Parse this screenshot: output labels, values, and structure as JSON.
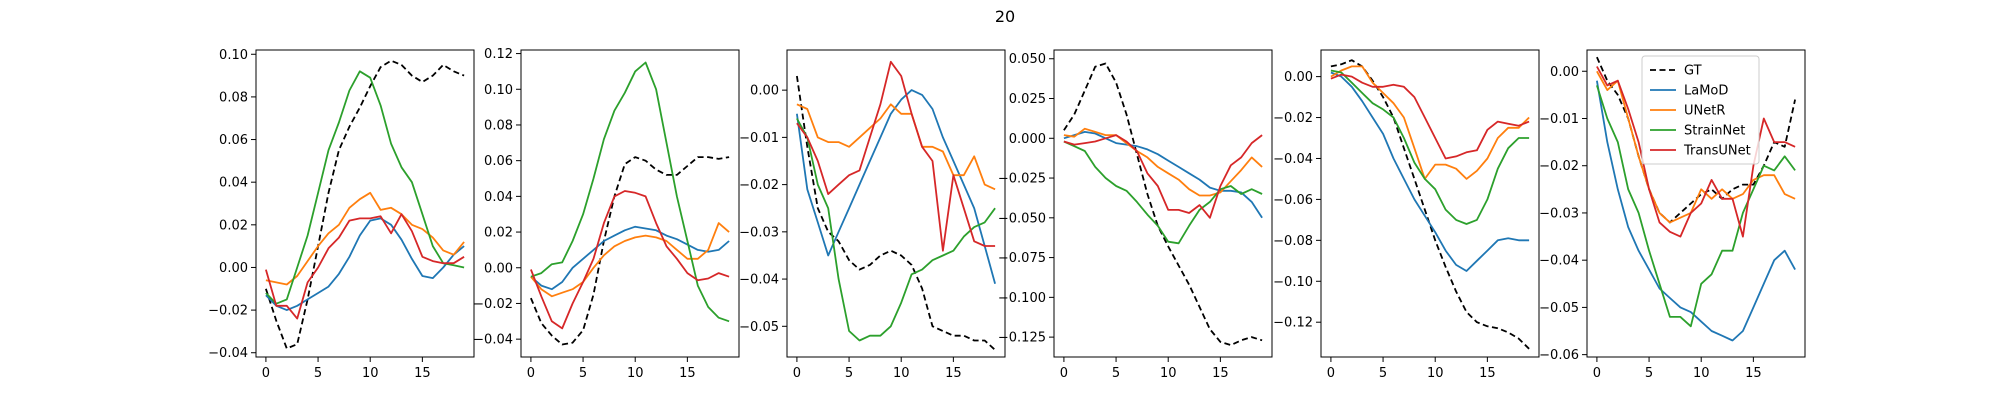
{
  "figure": {
    "title": "20"
  },
  "legend": {
    "location": "upper-left of panel 6",
    "entries": [
      "GT",
      "LaMoD",
      "UNetR",
      "StrainNet",
      "TransUNet"
    ]
  },
  "series_styles": [
    {
      "name": "GT",
      "color": "#000000",
      "dash": true
    },
    {
      "name": "LaMoD",
      "color": "#1f77b4",
      "dash": false
    },
    {
      "name": "UNetR",
      "color": "#ff7f0e",
      "dash": false
    },
    {
      "name": "StrainNet",
      "color": "#2ca02c",
      "dash": false
    },
    {
      "name": "TransUNet",
      "color": "#d62728",
      "dash": false
    }
  ],
  "chart_data": [
    {
      "type": "line",
      "x": [
        0,
        1,
        2,
        3,
        4,
        5,
        6,
        7,
        8,
        9,
        10,
        11,
        12,
        13,
        14,
        15,
        16,
        17,
        18,
        19
      ],
      "xticks": [
        0,
        5,
        10,
        15
      ],
      "xlim": [
        -0.95,
        19.95
      ],
      "ylim": [
        -0.042,
        0.102
      ],
      "yticks": [
        -0.04,
        -0.02,
        0.0,
        0.02,
        0.04,
        0.06,
        0.08,
        0.1
      ],
      "ytick_labels": [
        "−0.04",
        "−0.02",
        "0.00",
        "0.02",
        "0.04",
        "0.06",
        "0.08",
        "0.10"
      ],
      "series": [
        {
          "name": "GT",
          "values": [
            -0.01,
            -0.025,
            -0.038,
            -0.036,
            -0.015,
            0.01,
            0.035,
            0.055,
            0.066,
            0.075,
            0.085,
            0.094,
            0.097,
            0.095,
            0.09,
            0.087,
            0.09,
            0.095,
            0.092,
            0.09
          ]
        },
        {
          "name": "LaMoD",
          "values": [
            -0.013,
            -0.018,
            -0.02,
            -0.018,
            -0.015,
            -0.012,
            -0.009,
            -0.003,
            0.005,
            0.015,
            0.022,
            0.023,
            0.02,
            0.013,
            0.004,
            -0.004,
            -0.005,
            0.0,
            0.006,
            0.01
          ]
        },
        {
          "name": "UNetR",
          "values": [
            -0.006,
            -0.007,
            -0.008,
            -0.004,
            0.003,
            0.01,
            0.016,
            0.02,
            0.028,
            0.032,
            0.035,
            0.027,
            0.028,
            0.025,
            0.02,
            0.018,
            0.014,
            0.008,
            0.006,
            0.012
          ]
        },
        {
          "name": "StrainNet",
          "values": [
            -0.012,
            -0.017,
            -0.015,
            0.0,
            0.015,
            0.035,
            0.055,
            0.068,
            0.083,
            0.092,
            0.089,
            0.076,
            0.058,
            0.047,
            0.04,
            0.025,
            0.01,
            0.002,
            0.001,
            0.0
          ]
        },
        {
          "name": "TransUNet",
          "values": [
            -0.001,
            -0.018,
            -0.018,
            -0.024,
            -0.007,
            0.0,
            0.009,
            0.014,
            0.022,
            0.023,
            0.023,
            0.024,
            0.016,
            0.025,
            0.017,
            0.005,
            0.003,
            0.002,
            0.002,
            0.005
          ]
        }
      ]
    },
    {
      "type": "line",
      "x": [
        0,
        1,
        2,
        3,
        4,
        5,
        6,
        7,
        8,
        9,
        10,
        11,
        12,
        13,
        14,
        15,
        16,
        17,
        18,
        19
      ],
      "xticks": [
        0,
        5,
        10,
        15
      ],
      "xlim": [
        -0.95,
        19.95
      ],
      "ylim": [
        -0.05,
        0.122
      ],
      "yticks": [
        -0.04,
        -0.02,
        0.0,
        0.02,
        0.04,
        0.06,
        0.08,
        0.1,
        0.12
      ],
      "ytick_labels": [
        "−0.04",
        "−0.02",
        "0.00",
        "0.02",
        "0.04",
        "0.06",
        "0.08",
        "0.10",
        "0.12"
      ],
      "series": [
        {
          "name": "GT",
          "values": [
            -0.017,
            -0.031,
            -0.038,
            -0.043,
            -0.042,
            -0.035,
            -0.015,
            0.015,
            0.04,
            0.058,
            0.062,
            0.06,
            0.055,
            0.052,
            0.052,
            0.057,
            0.062,
            0.062,
            0.061,
            0.062
          ]
        },
        {
          "name": "LaMoD",
          "values": [
            -0.005,
            -0.01,
            -0.012,
            -0.008,
            0.0,
            0.005,
            0.01,
            0.015,
            0.018,
            0.021,
            0.023,
            0.022,
            0.021,
            0.018,
            0.016,
            0.013,
            0.01,
            0.009,
            0.01,
            0.015
          ]
        },
        {
          "name": "UNetR",
          "values": [
            -0.005,
            -0.012,
            -0.016,
            -0.014,
            -0.012,
            -0.008,
            0.0,
            0.007,
            0.012,
            0.015,
            0.017,
            0.018,
            0.017,
            0.015,
            0.01,
            0.005,
            0.005,
            0.01,
            0.025,
            0.02
          ]
        },
        {
          "name": "StrainNet",
          "values": [
            -0.005,
            -0.003,
            0.002,
            0.003,
            0.015,
            0.03,
            0.05,
            0.072,
            0.088,
            0.098,
            0.11,
            0.115,
            0.1,
            0.07,
            0.04,
            0.015,
            -0.01,
            -0.022,
            -0.028,
            -0.03
          ]
        },
        {
          "name": "TransUNet",
          "values": [
            -0.001,
            -0.016,
            -0.03,
            -0.034,
            -0.02,
            -0.008,
            0.005,
            0.025,
            0.04,
            0.043,
            0.042,
            0.04,
            0.025,
            0.012,
            0.005,
            -0.003,
            -0.007,
            -0.006,
            -0.003,
            -0.005
          ]
        }
      ]
    },
    {
      "type": "line",
      "x": [
        0,
        1,
        2,
        3,
        4,
        5,
        6,
        7,
        8,
        9,
        10,
        11,
        12,
        13,
        14,
        15,
        16,
        17,
        18,
        19
      ],
      "xticks": [
        0,
        5,
        10,
        15
      ],
      "xlim": [
        -0.95,
        19.95
      ],
      "ylim": [
        -0.0565,
        0.0085
      ],
      "yticks": [
        -0.05,
        -0.04,
        -0.03,
        -0.02,
        -0.01,
        0.0
      ],
      "ytick_labels": [
        "−0.05",
        "−0.04",
        "−0.03",
        "−0.02",
        "−0.01",
        "0.00"
      ],
      "series": [
        {
          "name": "GT",
          "values": [
            0.003,
            -0.012,
            -0.025,
            -0.03,
            -0.032,
            -0.036,
            -0.038,
            -0.037,
            -0.035,
            -0.034,
            -0.035,
            -0.037,
            -0.042,
            -0.05,
            -0.051,
            -0.052,
            -0.052,
            -0.053,
            -0.053,
            -0.055
          ]
        },
        {
          "name": "LaMoD",
          "values": [
            -0.005,
            -0.021,
            -0.028,
            -0.035,
            -0.03,
            -0.025,
            -0.02,
            -0.015,
            -0.01,
            -0.005,
            -0.002,
            0.0,
            -0.001,
            -0.004,
            -0.01,
            -0.015,
            -0.02,
            -0.025,
            -0.033,
            -0.041
          ]
        },
        {
          "name": "UNetR",
          "values": [
            -0.003,
            -0.004,
            -0.01,
            -0.011,
            -0.011,
            -0.012,
            -0.01,
            -0.008,
            -0.006,
            -0.003,
            -0.005,
            -0.005,
            -0.012,
            -0.012,
            -0.013,
            -0.018,
            -0.018,
            -0.014,
            -0.02,
            -0.021
          ]
        },
        {
          "name": "StrainNet",
          "values": [
            -0.006,
            -0.01,
            -0.02,
            -0.025,
            -0.04,
            -0.051,
            -0.053,
            -0.052,
            -0.052,
            -0.05,
            -0.045,
            -0.039,
            -0.038,
            -0.036,
            -0.035,
            -0.034,
            -0.031,
            -0.029,
            -0.028,
            -0.025
          ]
        },
        {
          "name": "TransUNet",
          "values": [
            -0.007,
            -0.01,
            -0.015,
            -0.022,
            -0.02,
            -0.018,
            -0.017,
            -0.01,
            -0.003,
            0.006,
            0.003,
            -0.005,
            -0.012,
            -0.015,
            -0.034,
            -0.018,
            -0.025,
            -0.032,
            -0.033,
            -0.033
          ]
        }
      ]
    },
    {
      "type": "line",
      "x": [
        0,
        1,
        2,
        3,
        4,
        5,
        6,
        7,
        8,
        9,
        10,
        11,
        12,
        13,
        14,
        15,
        16,
        17,
        18,
        19
      ],
      "xticks": [
        0,
        5,
        10,
        15
      ],
      "xlim": [
        -0.95,
        19.95
      ],
      "ylim": [
        -0.1375,
        0.0555
      ],
      "yticks": [
        -0.125,
        -0.1,
        -0.075,
        -0.05,
        -0.025,
        0.0,
        0.025,
        0.05
      ],
      "ytick_labels": [
        "−0.125",
        "−0.100",
        "−0.075",
        "−0.050",
        "−0.025",
        "0.000",
        "0.025",
        "0.050"
      ],
      "series": [
        {
          "name": "GT",
          "values": [
            0.005,
            0.015,
            0.03,
            0.045,
            0.047,
            0.035,
            0.015,
            -0.01,
            -0.035,
            -0.055,
            -0.068,
            -0.08,
            -0.092,
            -0.106,
            -0.12,
            -0.128,
            -0.13,
            -0.127,
            -0.125,
            -0.127
          ]
        },
        {
          "name": "LaMoD",
          "values": [
            0.0,
            0.002,
            0.004,
            0.003,
            0.0,
            -0.003,
            -0.004,
            -0.005,
            -0.007,
            -0.01,
            -0.014,
            -0.018,
            -0.022,
            -0.026,
            -0.031,
            -0.033,
            -0.033,
            -0.034,
            -0.04,
            -0.05
          ]
        },
        {
          "name": "UNetR",
          "values": [
            0.002,
            0.001,
            0.006,
            0.004,
            0.002,
            0.002,
            -0.003,
            -0.008,
            -0.012,
            -0.018,
            -0.022,
            -0.026,
            -0.032,
            -0.036,
            -0.036,
            -0.034,
            -0.027,
            -0.02,
            -0.012,
            -0.018
          ]
        },
        {
          "name": "StrainNet",
          "values": [
            -0.002,
            -0.005,
            -0.008,
            -0.018,
            -0.025,
            -0.03,
            -0.033,
            -0.04,
            -0.048,
            -0.055,
            -0.065,
            -0.066,
            -0.055,
            -0.045,
            -0.04,
            -0.032,
            -0.03,
            -0.035,
            -0.032,
            -0.035
          ]
        },
        {
          "name": "TransUNet",
          "values": [
            -0.002,
            -0.004,
            -0.003,
            -0.002,
            0.0,
            0.002,
            -0.002,
            -0.008,
            -0.022,
            -0.03,
            -0.045,
            -0.045,
            -0.047,
            -0.042,
            -0.05,
            -0.03,
            -0.017,
            -0.012,
            -0.003,
            0.002
          ]
        }
      ]
    },
    {
      "type": "line",
      "x": [
        0,
        1,
        2,
        3,
        4,
        5,
        6,
        7,
        8,
        9,
        10,
        11,
        12,
        13,
        14,
        15,
        16,
        17,
        18,
        19
      ],
      "xticks": [
        0,
        5,
        10,
        15
      ],
      "xlim": [
        -0.95,
        19.95
      ],
      "ylim": [
        -0.137,
        0.013
      ],
      "yticks": [
        -0.12,
        -0.1,
        -0.08,
        -0.06,
        -0.04,
        -0.02,
        0.0
      ],
      "ytick_labels": [
        "−0.12",
        "−0.10",
        "−0.08",
        "−0.06",
        "−0.04",
        "−0.02",
        "0.00"
      ],
      "series": [
        {
          "name": "GT",
          "values": [
            0.005,
            0.006,
            0.008,
            0.005,
            -0.002,
            -0.01,
            -0.02,
            -0.035,
            -0.05,
            -0.065,
            -0.08,
            -0.093,
            -0.105,
            -0.115,
            -0.12,
            -0.122,
            -0.123,
            -0.125,
            -0.128,
            -0.133
          ]
        },
        {
          "name": "LaMoD",
          "values": [
            0.002,
            0.0,
            -0.005,
            -0.012,
            -0.02,
            -0.028,
            -0.04,
            -0.05,
            -0.06,
            -0.068,
            -0.076,
            -0.085,
            -0.092,
            -0.095,
            -0.09,
            -0.085,
            -0.08,
            -0.079,
            -0.08,
            -0.08
          ]
        },
        {
          "name": "UNetR",
          "values": [
            0.0,
            0.003,
            0.005,
            0.005,
            -0.003,
            -0.008,
            -0.013,
            -0.02,
            -0.035,
            -0.05,
            -0.043,
            -0.043,
            -0.045,
            -0.05,
            -0.046,
            -0.04,
            -0.03,
            -0.025,
            -0.025,
            -0.02
          ]
        },
        {
          "name": "StrainNet",
          "values": [
            0.003,
            0.002,
            -0.003,
            -0.008,
            -0.013,
            -0.016,
            -0.02,
            -0.03,
            -0.042,
            -0.05,
            -0.055,
            -0.065,
            -0.07,
            -0.072,
            -0.07,
            -0.06,
            -0.045,
            -0.035,
            -0.03,
            -0.03
          ]
        },
        {
          "name": "TransUNet",
          "values": [
            -0.001,
            0.001,
            0.0,
            -0.003,
            -0.005,
            -0.005,
            -0.004,
            -0.005,
            -0.01,
            -0.02,
            -0.03,
            -0.04,
            -0.039,
            -0.037,
            -0.036,
            -0.026,
            -0.022,
            -0.023,
            -0.024,
            -0.022
          ]
        }
      ]
    },
    {
      "type": "line",
      "x": [
        0,
        1,
        2,
        3,
        4,
        5,
        6,
        7,
        8,
        9,
        10,
        11,
        12,
        13,
        14,
        15,
        16,
        17,
        18,
        19
      ],
      "xticks": [
        0,
        5,
        10,
        15
      ],
      "xlim": [
        -0.95,
        19.95
      ],
      "ylim": [
        -0.0605,
        0.0045
      ],
      "yticks": [
        -0.06,
        -0.05,
        -0.04,
        -0.03,
        -0.02,
        -0.01,
        0.0
      ],
      "ytick_labels": [
        "−0.06",
        "−0.05",
        "−0.04",
        "−0.03",
        "−0.02",
        "−0.01",
        "0.00"
      ],
      "series": [
        {
          "name": "GT",
          "values": [
            0.003,
            -0.002,
            -0.005,
            -0.01,
            -0.018,
            -0.025,
            -0.03,
            -0.032,
            -0.03,
            -0.028,
            -0.026,
            -0.025,
            -0.027,
            -0.025,
            -0.024,
            -0.024,
            -0.02,
            -0.015,
            -0.016,
            -0.006
          ]
        },
        {
          "name": "LaMoD",
          "values": [
            -0.002,
            -0.015,
            -0.025,
            -0.033,
            -0.038,
            -0.042,
            -0.046,
            -0.048,
            -0.05,
            -0.051,
            -0.053,
            -0.055,
            -0.056,
            -0.057,
            -0.055,
            -0.05,
            -0.045,
            -0.04,
            -0.038,
            -0.042
          ]
        },
        {
          "name": "UNetR",
          "values": [
            0.0,
            -0.004,
            -0.002,
            -0.01,
            -0.018,
            -0.025,
            -0.03,
            -0.032,
            -0.031,
            -0.03,
            -0.025,
            -0.027,
            -0.025,
            -0.027,
            -0.026,
            -0.023,
            -0.022,
            -0.022,
            -0.026,
            -0.027
          ]
        },
        {
          "name": "StrainNet",
          "values": [
            -0.003,
            -0.01,
            -0.015,
            -0.025,
            -0.03,
            -0.038,
            -0.045,
            -0.052,
            -0.052,
            -0.054,
            -0.045,
            -0.043,
            -0.038,
            -0.038,
            -0.03,
            -0.025,
            -0.02,
            -0.021,
            -0.018,
            -0.021
          ]
        },
        {
          "name": "TransUNet",
          "values": [
            0.001,
            -0.003,
            -0.002,
            -0.008,
            -0.015,
            -0.025,
            -0.032,
            -0.034,
            -0.035,
            -0.03,
            -0.028,
            -0.023,
            -0.027,
            -0.027,
            -0.035,
            -0.02,
            -0.01,
            -0.015,
            -0.015,
            -0.016
          ]
        }
      ]
    }
  ]
}
